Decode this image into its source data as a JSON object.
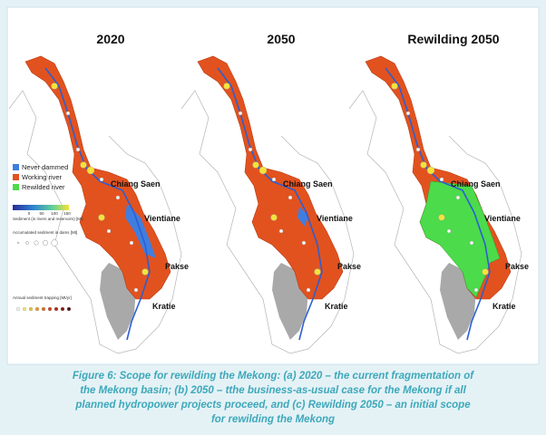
{
  "panels": [
    {
      "title": "2020",
      "cities": [
        "Chiang Saen",
        "Vientiane",
        "Pakse",
        "Kratie"
      ]
    },
    {
      "title": "2050",
      "cities": [
        "Chiang Saen",
        "Vientiane",
        "Pakse",
        "Kratie"
      ]
    },
    {
      "title": "Rewilding 2050",
      "cities": [
        "Chiang Saen",
        "Vientiane",
        "Pakse",
        "Kratie"
      ]
    }
  ],
  "legend": {
    "items": [
      "Never dammed",
      "Working river",
      "Rewilded river"
    ],
    "sediment_label": "Sediment (in rivers and reservoirs) [Mt]",
    "sediment_ticks": [
      "0",
      "50",
      "100",
      "150"
    ],
    "accumulated_label": "Accumulated sediment in dams [Mt]",
    "trapping_label": "Annual sediment trapping [Mt/yr]"
  },
  "caption": [
    "Figure 6: Scope for rewilding the Mekong: (a) 2020 – the current fragmentation of",
    "the Mekong basin; (b) 2050 – tthe business-as-usual case for the Mekong if all",
    "planned hydropower projects proceed, and (c) Rewilding 2050 – an initial scope",
    "for rewilding the Mekong"
  ]
}
